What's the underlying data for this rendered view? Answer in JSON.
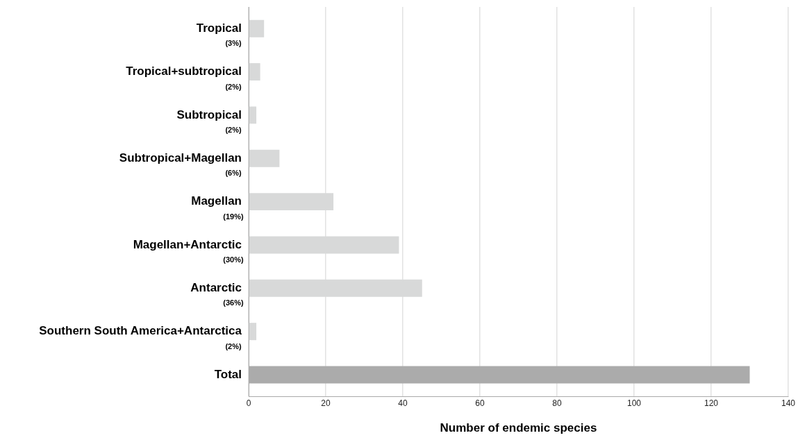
{
  "chart_data": {
    "type": "bar",
    "orientation": "horizontal",
    "xlabel": "Number of endemic species",
    "categories": [
      "Tropical\n(3%)",
      "Tropical+subtropical\n(2%)",
      "Subtropical\n(2%)",
      "Subtropical+Magellan\n(6%)",
      "Magellan\n(19%)",
      "Magellan+Antarctic\n(30%)",
      "Antarctic\n(36%)",
      "Southern South America+Antarctica\n(2%)",
      "Total"
    ],
    "values": [
      4,
      3,
      2,
      8,
      22,
      39,
      45,
      2,
      130
    ],
    "colors": [
      "#d8d9d9",
      "#d8d9d9",
      "#d8d9d9",
      "#d8d9d9",
      "#d8d9d9",
      "#d8d9d9",
      "#d8d9d9",
      "#d8d9d9",
      "#ababab"
    ],
    "xlim": [
      0,
      140
    ],
    "xticks": [
      0,
      20,
      40,
      60,
      80,
      100,
      120,
      140
    ],
    "grid": "x",
    "legend": false
  }
}
